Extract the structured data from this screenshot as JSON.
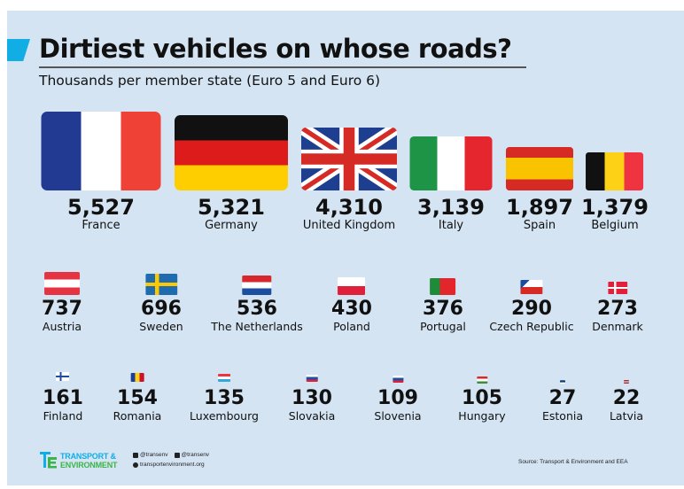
{
  "title": "Dirtiest vehicles on whose roads?",
  "subtitle": "Thousands per member state (Euro 5 and Euro 6)",
  "chart_data": {
    "type": "bar",
    "title": "Dirtiest vehicles on whose roads?",
    "subtitle": "Thousands per member state (Euro 5 and Euro 6)",
    "unit": "thousands",
    "categories": [
      "France",
      "Germany",
      "United Kingdom",
      "Italy",
      "Spain",
      "Belgium",
      "Austria",
      "Sweden",
      "The Netherlands",
      "Poland",
      "Portugal",
      "Czech Republic",
      "Denmark",
      "Finland",
      "Romania",
      "Luxembourg",
      "Slovakia",
      "Slovenia",
      "Hungary",
      "Estonia",
      "Latvia"
    ],
    "values": [
      5527,
      5321,
      4310,
      3139,
      1897,
      1379,
      737,
      696,
      536,
      430,
      376,
      290,
      273,
      161,
      154,
      135,
      130,
      109,
      105,
      27,
      22
    ],
    "labels": [
      "5,527",
      "5,321",
      "4,310",
      "3,139",
      "1,897",
      "1,379",
      "737",
      "696",
      "536",
      "430",
      "376",
      "290",
      "273",
      "161",
      "154",
      "135",
      "130",
      "109",
      "105",
      "27",
      "22"
    ]
  },
  "footer": {
    "logo_line1": "TRANSPORT &",
    "logo_line2": "ENVIRONMENT",
    "twitter": "@transenv",
    "facebook": "@transenv",
    "website": "transportenvironment.org",
    "source": "Source: Transport & Environment and EEA"
  },
  "colors": {
    "background": "#d4e4f3",
    "accent": "#11aee6",
    "logo_blue": "#11aee6",
    "logo_green": "#3bb54a"
  }
}
